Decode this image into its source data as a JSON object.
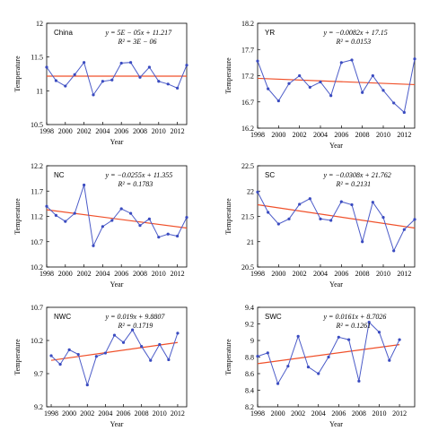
{
  "chart_data": [
    {
      "type": "line",
      "title": "China",
      "x": [
        1998,
        1999,
        2000,
        2001,
        2002,
        2003,
        2004,
        2005,
        2006,
        2007,
        2008,
        2009,
        2010,
        2011,
        2012,
        2013
      ],
      "series": [
        {
          "values": [
            11.35,
            11.15,
            11.07,
            11.24,
            11.42,
            10.94,
            11.14,
            11.16,
            11.41,
            11.42,
            11.2,
            11.35,
            11.14,
            11.1,
            11.04,
            11.38
          ]
        }
      ],
      "trend": [
        11.217,
        11.217
      ],
      "equation": "y = 5E − 05x + 11.217",
      "r2": "R² = 3E − 06",
      "xlabel": "Year",
      "ylabel": "Temperature",
      "ylim": [
        10.5,
        12
      ],
      "yticks": [
        "10.5",
        "11",
        "11.5",
        "12"
      ],
      "xlim": [
        1998,
        2013
      ],
      "xticks": [
        "1998",
        "2000",
        "2002",
        "2004",
        "2006",
        "2008",
        "2010",
        "2012"
      ]
    },
    {
      "type": "line",
      "title": "YR",
      "x": [
        1998,
        1999,
        2000,
        2001,
        2002,
        2003,
        2004,
        2005,
        2006,
        2007,
        2008,
        2009,
        2010,
        2011,
        2012,
        2013
      ],
      "series": [
        {
          "values": [
            17.48,
            16.95,
            16.72,
            17.05,
            17.2,
            16.98,
            17.08,
            16.82,
            17.45,
            17.5,
            16.88,
            17.2,
            16.92,
            16.68,
            16.5,
            17.52
          ]
        }
      ],
      "trend": [
        17.15,
        17.03
      ],
      "equation": "y = −0.0082x + 17.15",
      "r2": "R² = 0.0153",
      "xlabel": "Year",
      "ylabel": "Temperature",
      "ylim": [
        16.2,
        18.2
      ],
      "yticks": [
        "16.2",
        "16.7",
        "17.2",
        "17.7",
        "18.2"
      ],
      "xlim": [
        1998,
        2013
      ],
      "xticks": [
        "1998",
        "2000",
        "2002",
        "2004",
        "2006",
        "2008",
        "2010",
        "2012"
      ]
    },
    {
      "type": "line",
      "title": "NC",
      "x": [
        1998,
        1999,
        2000,
        2001,
        2002,
        2003,
        2004,
        2005,
        2006,
        2007,
        2008,
        2009,
        2010,
        2011,
        2012,
        2013
      ],
      "series": [
        {
          "values": [
            11.4,
            11.22,
            11.1,
            11.26,
            11.82,
            10.62,
            11.0,
            11.12,
            11.35,
            11.26,
            11.02,
            11.15,
            10.79,
            10.85,
            10.81,
            11.18
          ]
        }
      ],
      "trend": [
        11.33,
        10.97
      ],
      "equation": "y = −0.0255x + 11.355",
      "r2": "R² = 0.1783",
      "xlabel": "Year",
      "ylabel": "Temperature",
      "ylim": [
        10.2,
        12.2
      ],
      "yticks": [
        "10.2",
        "10.7",
        "11.2",
        "11.7",
        "12.2"
      ],
      "xlim": [
        1998,
        2013
      ],
      "xticks": [
        "1998",
        "2000",
        "2002",
        "2004",
        "2006",
        "2008",
        "2010",
        "2012"
      ]
    },
    {
      "type": "line",
      "title": "SC",
      "x": [
        1998,
        1999,
        2000,
        2001,
        2002,
        2003,
        2004,
        2005,
        2006,
        2007,
        2008,
        2009,
        2010,
        2011,
        2012,
        2013
      ],
      "series": [
        {
          "values": [
            21.98,
            21.58,
            21.35,
            21.45,
            21.74,
            21.85,
            21.45,
            21.42,
            21.79,
            21.73,
            21.0,
            21.78,
            21.48,
            20.82,
            21.24,
            21.44
          ]
        }
      ],
      "trend": [
        21.73,
        21.27
      ],
      "equation": "y = −0.0308x + 21.762",
      "r2": "R² = 0.2131",
      "xlabel": "Year",
      "ylabel": "Temperature",
      "ylim": [
        20.5,
        22.5
      ],
      "yticks": [
        "20.5",
        "21",
        "21.5",
        "22",
        "22.5"
      ],
      "xlim": [
        1998,
        2013
      ],
      "xticks": [
        "1998",
        "2000",
        "2002",
        "2004",
        "2006",
        "2008",
        "2010",
        "2012"
      ]
    },
    {
      "type": "line",
      "title": "NWC",
      "x": [
        1998,
        1999,
        2000,
        2001,
        2002,
        2003,
        2004,
        2005,
        2006,
        2007,
        2008,
        2009,
        2010,
        2011,
        2012
      ],
      "series": [
        {
          "values": [
            9.97,
            9.84,
            10.06,
            9.99,
            9.53,
            9.96,
            10.01,
            10.28,
            10.17,
            10.36,
            10.11,
            9.9,
            10.14,
            9.91,
            10.31
          ]
        }
      ],
      "trend": [
        9.9,
        10.17
      ],
      "equation": "y = 0.019x + 9.8807",
      "r2": "R² = 0.1719",
      "xlabel": "Year",
      "ylabel": "Temperature",
      "ylim": [
        9.2,
        10.7
      ],
      "yticks": [
        "9.2",
        "9.7",
        "10.2",
        "10.7"
      ],
      "xlim": [
        1997.5,
        2013
      ],
      "xticks": [
        "1998",
        "2000",
        "2002",
        "2004",
        "2006",
        "2008",
        "2010",
        "2012"
      ]
    },
    {
      "type": "line",
      "title": "SWC",
      "x": [
        1998,
        1999,
        2000,
        2001,
        2002,
        2003,
        2004,
        2005,
        2006,
        2007,
        2008,
        2009,
        2010,
        2011,
        2012
      ],
      "series": [
        {
          "values": [
            8.81,
            8.85,
            8.48,
            8.69,
            9.05,
            8.68,
            8.6,
            8.8,
            9.04,
            9.01,
            8.51,
            9.22,
            9.1,
            8.76,
            9.01
          ]
        }
      ],
      "trend": [
        8.72,
        8.95
      ],
      "equation": "y = 0.0161x + 8.7026",
      "r2": "R² = 0.1261",
      "xlabel": "Year",
      "ylabel": "Temperature",
      "ylim": [
        8.2,
        9.4
      ],
      "yticks": [
        "8.2",
        "8.4",
        "8.6",
        "8.8",
        "9",
        "9.2",
        "9.4"
      ],
      "xlim": [
        1998,
        2013.5
      ],
      "xticks": [
        "1998",
        "2000",
        "2002",
        "2004",
        "2006",
        "2008",
        "2010",
        "2012"
      ]
    }
  ]
}
